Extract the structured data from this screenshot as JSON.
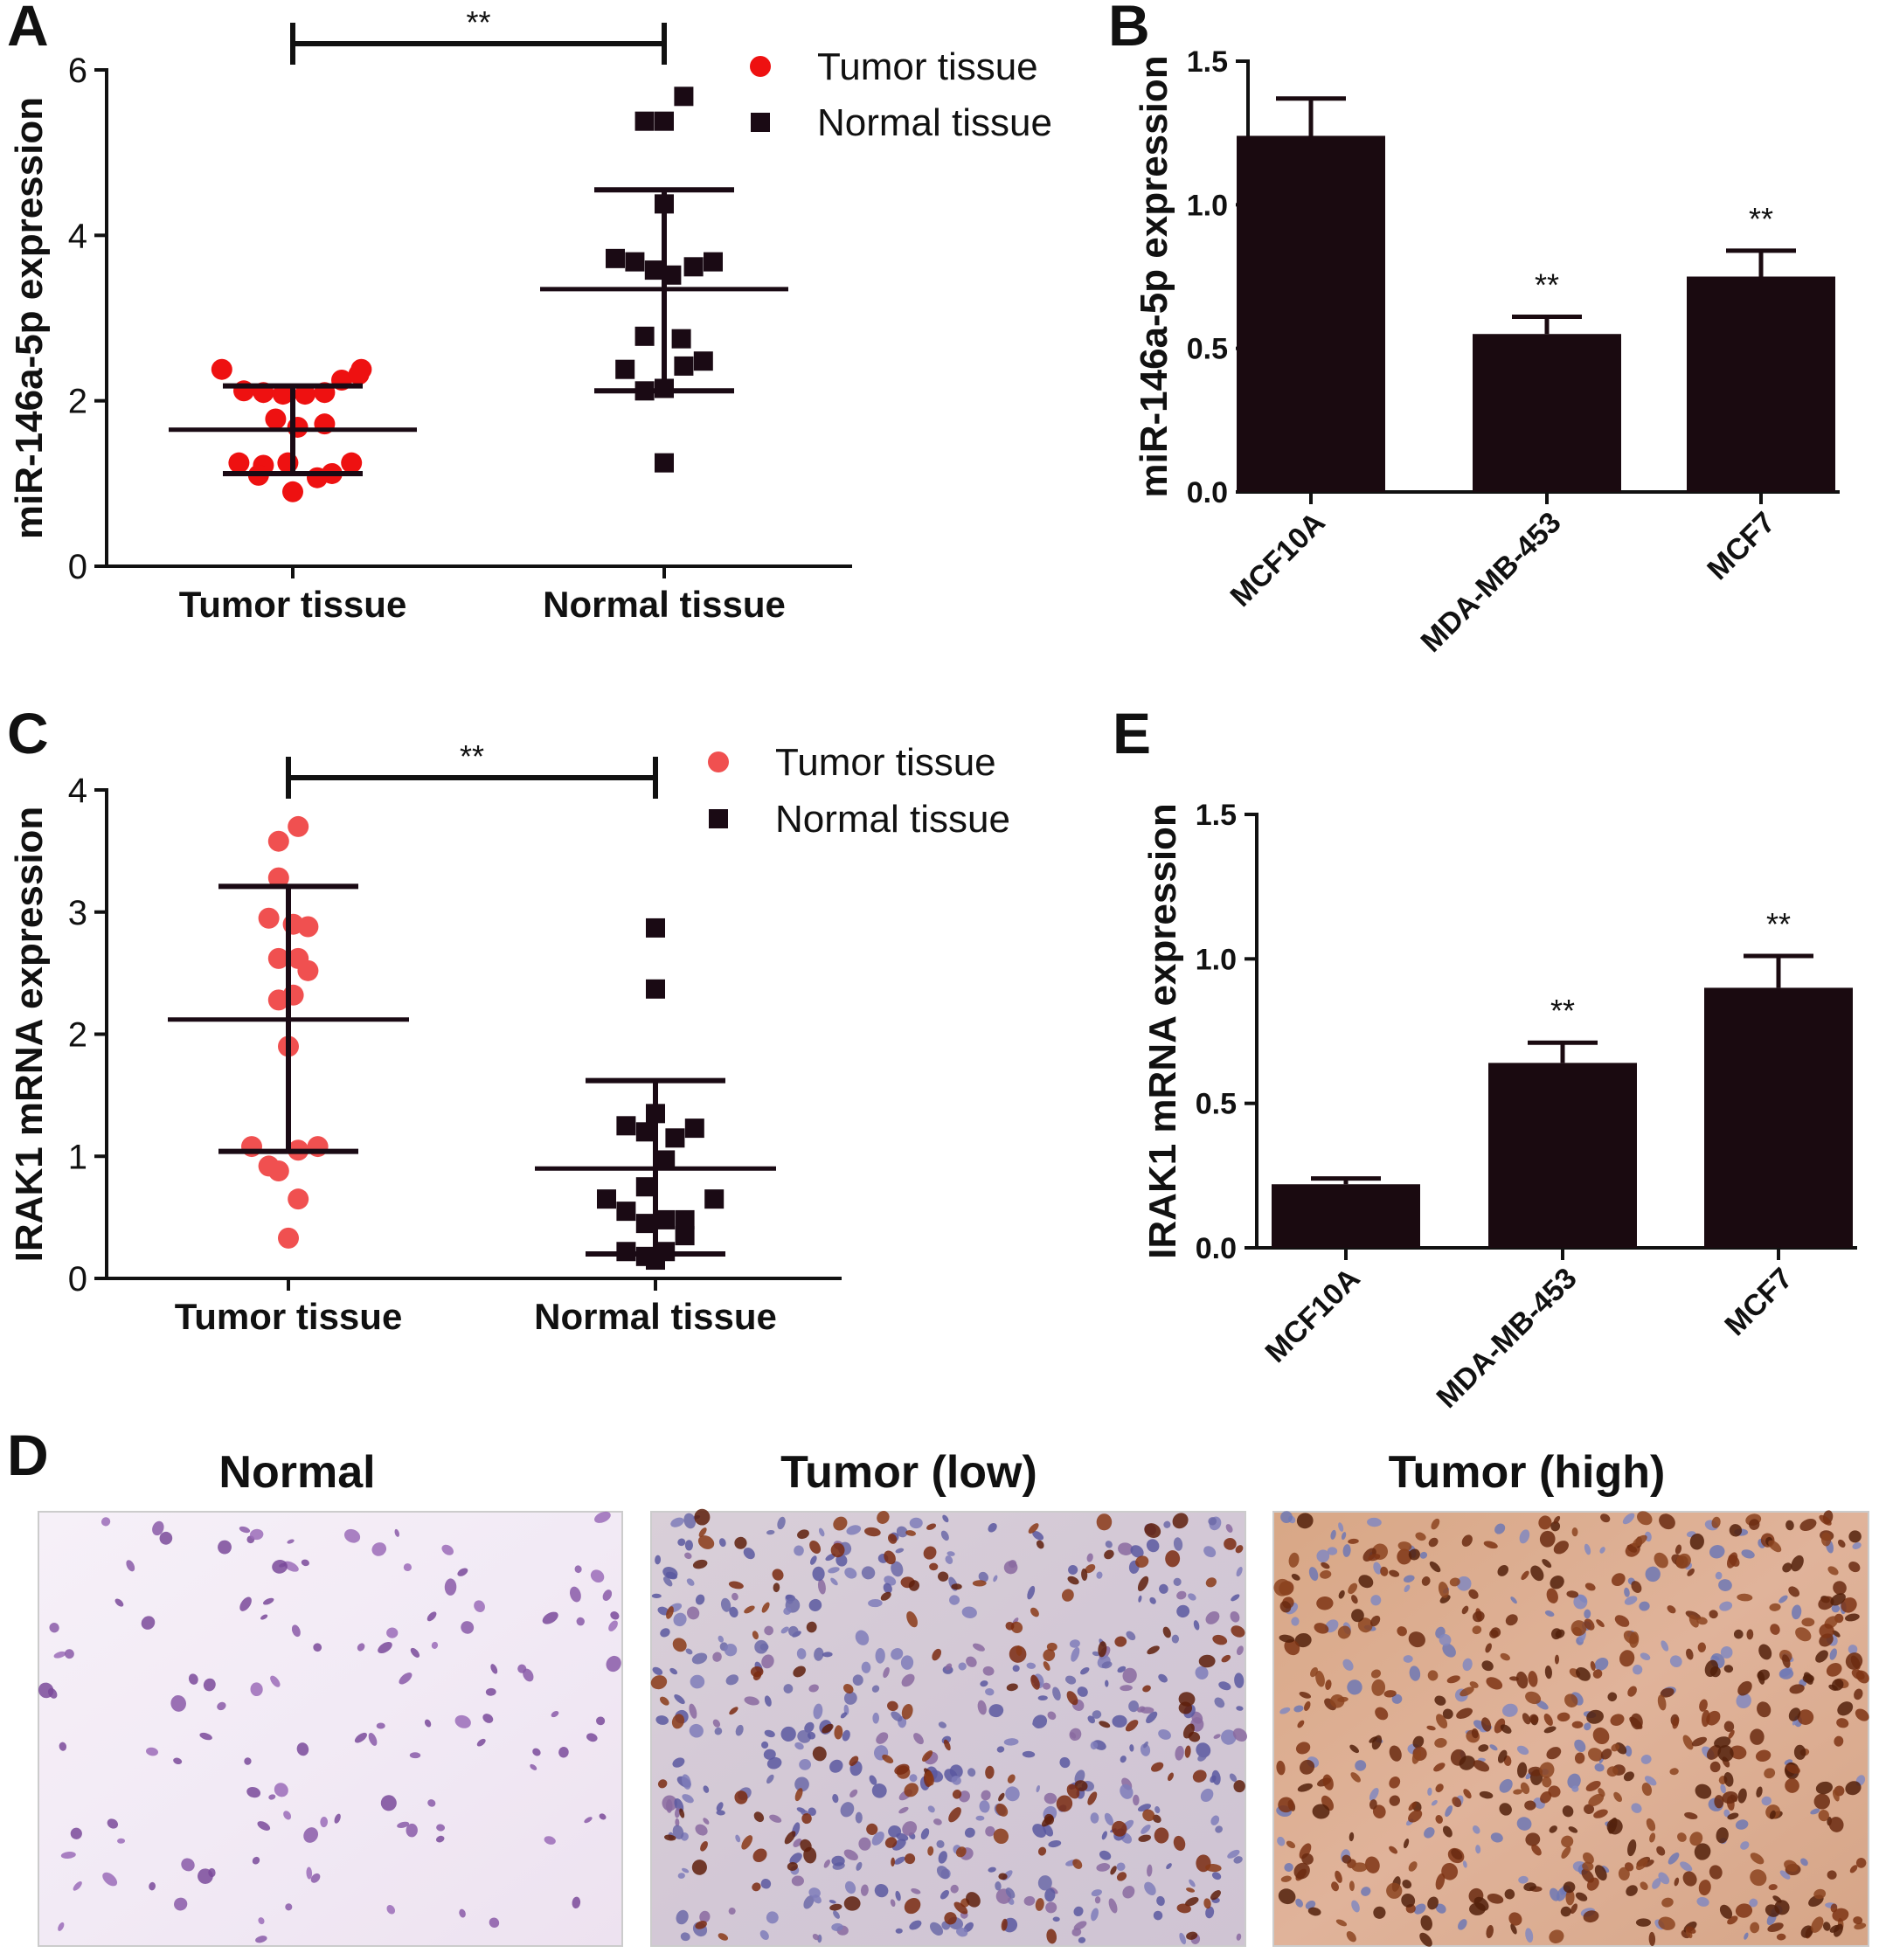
{
  "colors": {
    "tumor_A": "#ee1111",
    "tumor_C": "#f05050",
    "normal": "#1a0a14",
    "bar": "#1a0a10",
    "axis": "#111111"
  },
  "chart_data": [
    {
      "panel": "A",
      "type": "scatter",
      "ylabel": "miR-146a-5p expression",
      "ylim": [
        0,
        6
      ],
      "yticks": [
        "0",
        "2",
        "4",
        "6"
      ],
      "categories": [
        "Tumor tissue",
        "Normal tissue"
      ],
      "legend": [
        "Tumor tissue",
        "Normal tissue"
      ],
      "significance": "**",
      "series": [
        {
          "name": "Tumor tissue",
          "marker": "circle",
          "mean": 1.65,
          "sd_low": 1.12,
          "sd_high": 2.18,
          "points": [
            [
              -0.29,
              2.38
            ],
            [
              -0.2,
              2.12
            ],
            [
              -0.12,
              2.1
            ],
            [
              -0.04,
              2.08
            ],
            [
              0.05,
              2.08
            ],
            [
              0.13,
              2.1
            ],
            [
              0.2,
              2.25
            ],
            [
              0.28,
              2.38
            ],
            [
              0.27,
              2.32
            ],
            [
              -0.07,
              1.78
            ],
            [
              0.02,
              1.68
            ],
            [
              0.13,
              1.72
            ],
            [
              -0.22,
              1.25
            ],
            [
              -0.12,
              1.22
            ],
            [
              -0.02,
              1.25
            ],
            [
              0.1,
              1.07
            ],
            [
              0.16,
              1.12
            ],
            [
              0.24,
              1.25
            ],
            [
              -0.14,
              1.1
            ],
            [
              0.0,
              0.9
            ]
          ]
        },
        {
          "name": "Normal tissue",
          "marker": "square",
          "mean": 3.35,
          "sd_low": 2.12,
          "sd_high": 4.55,
          "points": [
            [
              -0.08,
              5.38
            ],
            [
              0.0,
              5.38
            ],
            [
              0.08,
              5.68
            ],
            [
              0.0,
              4.38
            ],
            [
              -0.2,
              3.72
            ],
            [
              -0.12,
              3.68
            ],
            [
              -0.04,
              3.58
            ],
            [
              0.03,
              3.52
            ],
            [
              0.12,
              3.62
            ],
            [
              0.2,
              3.68
            ],
            [
              -0.08,
              2.78
            ],
            [
              0.07,
              2.75
            ],
            [
              -0.16,
              2.38
            ],
            [
              -0.08,
              2.12
            ],
            [
              0.0,
              2.15
            ],
            [
              0.08,
              2.42
            ],
            [
              0.16,
              2.48
            ],
            [
              0.0,
              1.25
            ]
          ]
        }
      ]
    },
    {
      "panel": "B",
      "type": "bar",
      "ylabel": "miR-146a-5p expression",
      "ylim": [
        0,
        1.5
      ],
      "yticks": [
        "0.0",
        "0.5",
        "1.0",
        "1.5"
      ],
      "categories": [
        "MCF10A",
        "MDA-MB-453",
        "MCF7"
      ],
      "values": [
        1.24,
        0.55,
        0.75
      ],
      "errors": [
        0.13,
        0.06,
        0.09
      ],
      "annotations": [
        "",
        "**",
        "**"
      ]
    },
    {
      "panel": "C",
      "type": "scatter",
      "ylabel": "IRAK1 mRNA expression",
      "ylim": [
        0,
        4
      ],
      "yticks": [
        "0",
        "1",
        "2",
        "3",
        "4"
      ],
      "categories": [
        "Tumor tissue",
        "Normal tissue"
      ],
      "legend": [
        "Tumor tissue",
        "Normal tissue"
      ],
      "significance": "**",
      "series": [
        {
          "name": "Tumor tissue",
          "marker": "circle",
          "mean": 2.12,
          "sd_low": 1.04,
          "sd_high": 3.21,
          "points": [
            [
              -0.04,
              3.58
            ],
            [
              0.04,
              3.7
            ],
            [
              -0.04,
              3.28
            ],
            [
              -0.08,
              2.95
            ],
            [
              0.02,
              2.9
            ],
            [
              0.08,
              2.88
            ],
            [
              -0.04,
              2.62
            ],
            [
              0.04,
              2.62
            ],
            [
              0.08,
              2.52
            ],
            [
              -0.04,
              2.28
            ],
            [
              0.02,
              2.32
            ],
            [
              0.0,
              1.9
            ],
            [
              -0.15,
              1.08
            ],
            [
              -0.08,
              0.92
            ],
            [
              -0.04,
              0.88
            ],
            [
              0.04,
              1.05
            ],
            [
              0.12,
              1.08
            ],
            [
              0.04,
              0.65
            ],
            [
              0.0,
              0.33
            ]
          ]
        },
        {
          "name": "Normal tissue",
          "marker": "square",
          "mean": 0.9,
          "sd_low": 0.2,
          "sd_high": 1.62,
          "points": [
            [
              0.0,
              2.87
            ],
            [
              0.0,
              2.37
            ],
            [
              -0.12,
              1.25
            ],
            [
              -0.04,
              1.2
            ],
            [
              0.0,
              1.35
            ],
            [
              0.08,
              1.15
            ],
            [
              0.16,
              1.23
            ],
            [
              0.04,
              0.97
            ],
            [
              -0.04,
              0.75
            ],
            [
              -0.2,
              0.65
            ],
            [
              -0.12,
              0.55
            ],
            [
              -0.04,
              0.45
            ],
            [
              0.04,
              0.48
            ],
            [
              0.12,
              0.48
            ],
            [
              0.24,
              0.65
            ],
            [
              -0.12,
              0.22
            ],
            [
              -0.04,
              0.18
            ],
            [
              0.04,
              0.22
            ],
            [
              0.12,
              0.35
            ],
            [
              0.0,
              0.15
            ]
          ]
        }
      ]
    },
    {
      "panel": "E",
      "type": "bar",
      "ylabel": "IRAK1 mRNA expression",
      "ylim": [
        0,
        1.5
      ],
      "yticks": [
        "0.0",
        "0.5",
        "1.0",
        "1.5"
      ],
      "categories": [
        "MCF10A",
        "MDA-MB-453",
        "MCF7"
      ],
      "values": [
        0.22,
        0.64,
        0.9
      ],
      "errors": [
        0.02,
        0.07,
        0.11
      ],
      "annotations": [
        "",
        "**",
        "**"
      ]
    }
  ],
  "panel_labels": {
    "A": "A",
    "B": "B",
    "C": "C",
    "D": "D",
    "E": "E"
  },
  "images": {
    "panel": "D",
    "titles": [
      "Normal",
      "Tumor (low)",
      "Tumor (high)"
    ]
  }
}
